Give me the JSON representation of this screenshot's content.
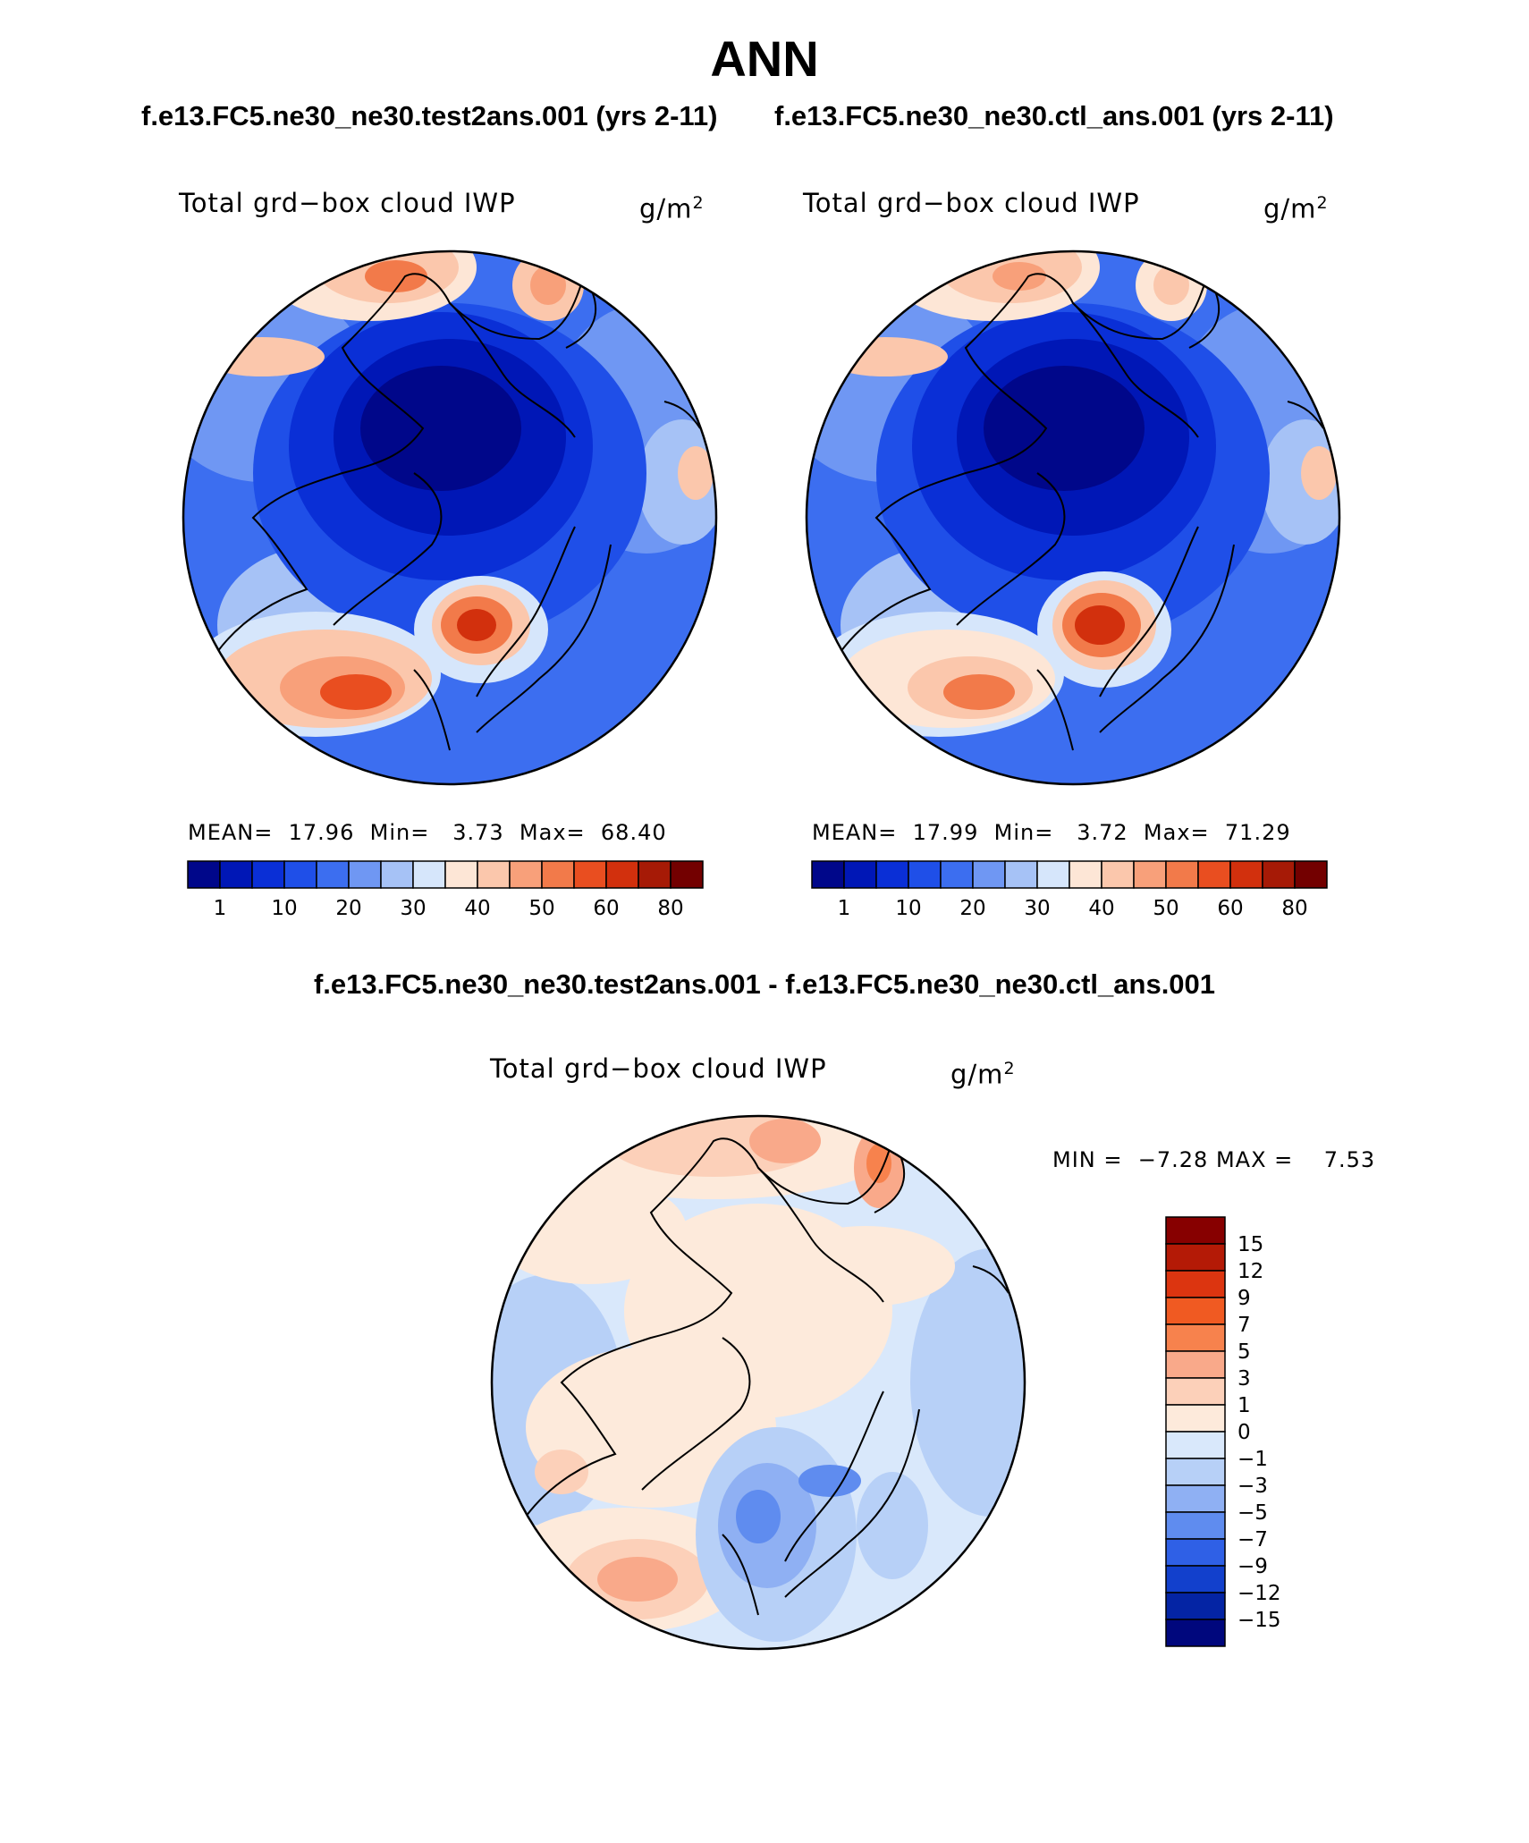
{
  "main_title": "ANN",
  "top_panels": [
    {
      "case_label": "f.e13.FC5.ne30_ne30.test2ans.001 (yrs 2-11)",
      "variable": "Total grd−box cloud IWP",
      "units": "g/m",
      "units_exp": "2",
      "stats": {
        "mean_label": "MEAN=",
        "mean": "17.96",
        "min_label": "Min=",
        "min": "3.73",
        "max_label": "Max=",
        "max": "68.40"
      }
    },
    {
      "case_label": "f.e13.FC5.ne30_ne30.ctl_ans.001 (yrs 2-11)",
      "variable": "Total grd−box cloud IWP",
      "units": "g/m",
      "units_exp": "2",
      "stats": {
        "mean_label": "MEAN=",
        "mean": "17.99",
        "min_label": "Min=",
        "min": "3.72",
        "max_label": "Max=",
        "max": "71.29"
      }
    }
  ],
  "colorbar_top": {
    "colors": [
      "#00078a",
      "#0017b6",
      "#0a2fd6",
      "#1f4fe8",
      "#3c6ef0",
      "#6f97f3",
      "#a6c2f6",
      "#d6e6fb",
      "#fde6d6",
      "#fbc7ac",
      "#f8a07a",
      "#f27a4a",
      "#e94e20",
      "#d2300d",
      "#a61a06",
      "#730000"
    ],
    "labels": [
      "1",
      "10",
      "20",
      "30",
      "40",
      "50",
      "60",
      "80"
    ]
  },
  "diff_panel": {
    "title": "f.e13.FC5.ne30_ne30.test2ans.001 - f.e13.FC5.ne30_ne30.ctl_ans.001",
    "variable": "Total grd−box cloud IWP",
    "units": "g/m",
    "units_exp": "2",
    "min_label": "MIN =",
    "min": "−7.28",
    "max_label": "MAX =",
    "max": "7.53"
  },
  "colorbar_diff": {
    "colors": [
      "#870000",
      "#b41a06",
      "#dc3510",
      "#f05a22",
      "#f7824d",
      "#f9a98a",
      "#fcd0b9",
      "#fdeadb",
      "#d9e8fb",
      "#b7d0f7",
      "#8fb0f3",
      "#5f8cef",
      "#2f60e6",
      "#1240cc",
      "#0424a4",
      "#00077d"
    ],
    "labels": [
      "15",
      "12",
      "9",
      "7",
      "5",
      "3",
      "1",
      "0",
      "−1",
      "−3",
      "−5",
      "−7",
      "−9",
      "−12",
      "−15"
    ]
  }
}
